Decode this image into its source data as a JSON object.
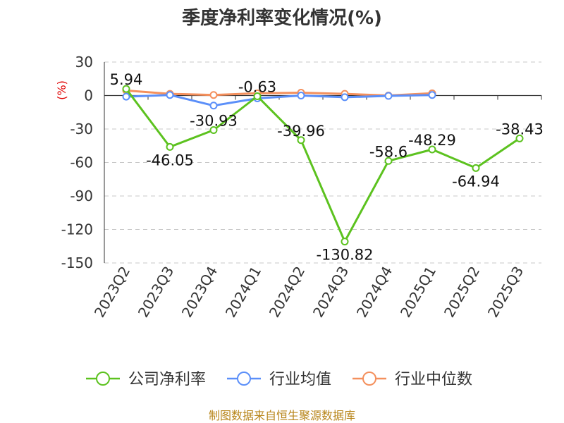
{
  "chart_data": {
    "type": "line",
    "title": "季度净利率变化情况(%)",
    "y_unit": "(%)",
    "ylim": [
      -150,
      30
    ],
    "y_ticks": [
      30,
      0,
      -30,
      -60,
      -90,
      -120,
      -150
    ],
    "grid": true,
    "legend_position": "bottom",
    "categories": [
      "2023Q2",
      "2023Q3",
      "2023Q4",
      "2024Q1",
      "2024Q2",
      "2024Q3",
      "2024Q4",
      "2025Q1",
      "2025Q2",
      "2025Q3"
    ],
    "series": [
      {
        "name": "公司净利率",
        "color": "#5cc21f",
        "values": [
          5.94,
          -46.05,
          -30.93,
          -0.63,
          -39.96,
          -130.82,
          -58.6,
          -48.29,
          -64.94,
          -38.43
        ],
        "labels": [
          "5.94",
          "-46.05",
          "-30.93",
          "-0.63",
          "-39.96",
          "-130.82",
          "-58.6",
          "-48.29",
          "-64.94",
          "-38.43"
        ]
      },
      {
        "name": "行业均值",
        "color": "#5b8ff9",
        "values": [
          -1.0,
          0.5,
          -9.0,
          -2.5,
          0.0,
          -1.5,
          -0.3,
          0.5,
          null,
          null
        ]
      },
      {
        "name": "行业中位数",
        "color": "#f4905d",
        "values": [
          4.5,
          1.5,
          0.5,
          2.0,
          2.5,
          1.5,
          0.0,
          2.0,
          null,
          null
        ]
      }
    ]
  },
  "source": "制图数据来自恒生聚源数据库"
}
